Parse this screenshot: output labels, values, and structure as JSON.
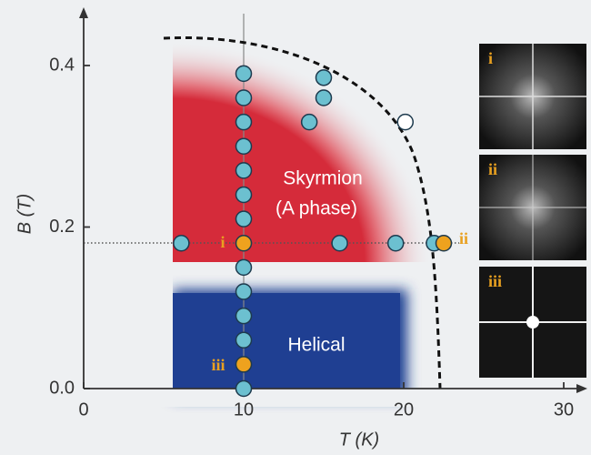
{
  "chart_data": {
    "type": "scatter",
    "xlabel": "T (K)",
    "ylabel": "B (T)",
    "xlim": [
      0,
      31
    ],
    "ylim": [
      0,
      0.46
    ],
    "xticks": [
      0,
      10,
      20,
      30
    ],
    "yticks": [
      {
        "value": 0,
        "label": "0.0"
      },
      0.2,
      0.4
    ],
    "series": [
      {
        "color": "#6cc0d0",
        "x": [
          10,
          10,
          10,
          10,
          10,
          10,
          10,
          10,
          10,
          10,
          10,
          10,
          6.1,
          16.0,
          19.5,
          21.9,
          14.1,
          15.0,
          15.0
        ],
        "values": [
          0.39,
          0.36,
          0.33,
          0.3,
          0.27,
          0.24,
          0.21,
          0.15,
          0.12,
          0.09,
          0.06,
          0.0,
          0.18,
          0.18,
          0.18,
          0.18,
          0.33,
          0.36,
          0.385
        ]
      },
      {
        "color": "#eea21e",
        "x": [
          10,
          10,
          22.5
        ],
        "values": [
          0.18,
          0.03,
          0.18
        ]
      },
      {
        "color": "#ffffff",
        "x": [
          20.1
        ],
        "values": [
          0.33
        ]
      }
    ],
    "phase_labels": [
      "Skyrmion",
      "(A phase)",
      "Helical"
    ],
    "point_labels": [
      "i",
      "ii",
      "iii"
    ],
    "inset_labels": [
      "i",
      "ii",
      "iii"
    ]
  }
}
